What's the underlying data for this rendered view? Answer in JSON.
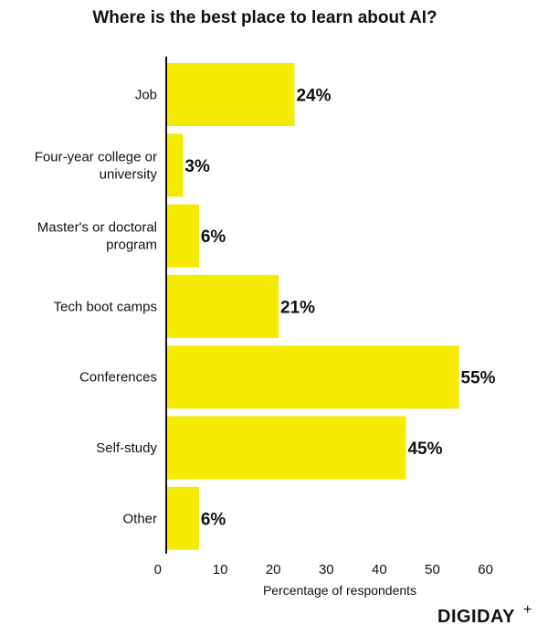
{
  "chart_data": {
    "type": "bar",
    "orientation": "horizontal",
    "title": "Where is the best place to learn about AI?",
    "categories": [
      [
        "Job"
      ],
      [
        "Four-year college or",
        "university"
      ],
      [
        "Master's or doctoral",
        "program"
      ],
      [
        "Tech boot camps"
      ],
      [
        "Conferences"
      ],
      [
        "Self-study"
      ],
      [
        "Other"
      ]
    ],
    "values": [
      24,
      3,
      6,
      21,
      55,
      45,
      6
    ],
    "value_labels": [
      "24%",
      "3%",
      "6%",
      "21%",
      "55%",
      "45%",
      "6%"
    ],
    "xlabel": "Percentage of respondents",
    "ylabel": "",
    "xlim": [
      0,
      60
    ],
    "xticks": [
      "0",
      "10",
      "20",
      "30",
      "40",
      "50",
      "60"
    ],
    "grid": false,
    "legend": "none",
    "bar_color": "#F5EB00"
  },
  "branding": {
    "logo_text": "DIGIDAY",
    "logo_mark": "+"
  },
  "colors": {
    "text": "#111111",
    "axis": "#111111",
    "background": "#FFFFFF"
  }
}
